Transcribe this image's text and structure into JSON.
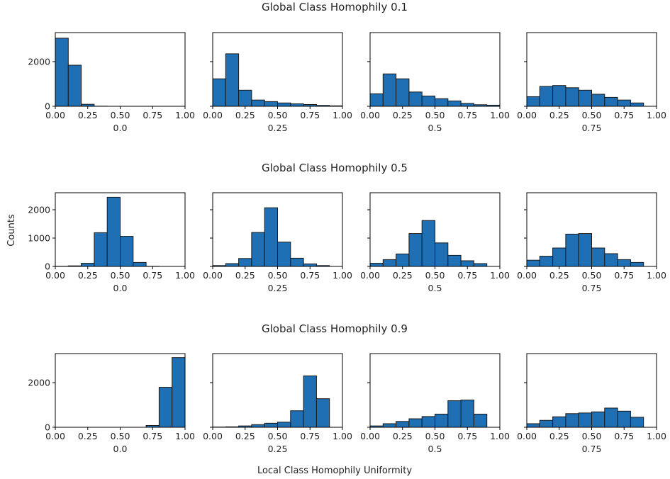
{
  "figure": {
    "ylabel": "Counts",
    "xlabel": "Local Class Homophily Uniformity"
  },
  "style": {
    "bar_color": "#1f6fb4",
    "edge_color": "#1a1a1a"
  },
  "chart_data": [
    {
      "type": "bar",
      "title": "Global Class Homophily 0.1",
      "ylim": [
        0,
        3300
      ],
      "yticks": [
        0,
        2000
      ],
      "xlim": [
        0,
        1
      ],
      "xticks": [
        "0.00",
        "0.25",
        "0.50",
        "0.75",
        "1.00"
      ],
      "bins": [
        0,
        0.1,
        0.2,
        0.3,
        0.4,
        0.5,
        0.6,
        0.7,
        0.8,
        0.9,
        1.0
      ],
      "panels": [
        {
          "xlabel": "0.0",
          "values": [
            3050,
            1840,
            90,
            5,
            0,
            0,
            0,
            0,
            0,
            0
          ]
        },
        {
          "xlabel": "0.25",
          "values": [
            1230,
            2350,
            720,
            280,
            210,
            150,
            110,
            80,
            40,
            20
          ]
        },
        {
          "xlabel": "0.5",
          "values": [
            560,
            1450,
            1230,
            640,
            460,
            340,
            240,
            130,
            70,
            50
          ]
        },
        {
          "xlabel": "0.75",
          "values": [
            430,
            890,
            930,
            830,
            720,
            540,
            400,
            280,
            150,
            0
          ]
        }
      ]
    },
    {
      "type": "bar",
      "title": "Global Class Homophily 0.5",
      "ylim": [
        0,
        2600
      ],
      "yticks": [
        0,
        1000,
        2000
      ],
      "xlim": [
        0,
        1
      ],
      "xticks": [
        "0.00",
        "0.25",
        "0.50",
        "0.75",
        "1.00"
      ],
      "bins": [
        0,
        0.1,
        0.2,
        0.3,
        0.4,
        0.5,
        0.6,
        0.7,
        0.8,
        0.9,
        1.0
      ],
      "panels": [
        {
          "xlabel": "0.0",
          "values": [
            5,
            20,
            110,
            1190,
            2440,
            1060,
            140,
            5,
            0,
            0
          ]
        },
        {
          "xlabel": "0.25",
          "values": [
            30,
            100,
            280,
            1200,
            2070,
            860,
            290,
            90,
            30,
            0
          ]
        },
        {
          "xlabel": "0.5",
          "values": [
            110,
            240,
            440,
            1160,
            1620,
            830,
            390,
            200,
            100,
            0
          ]
        },
        {
          "xlabel": "0.75",
          "values": [
            220,
            360,
            650,
            1140,
            1160,
            650,
            450,
            240,
            140,
            0
          ]
        }
      ]
    },
    {
      "type": "bar",
      "title": "Global Class Homophily 0.9",
      "ylim": [
        0,
        3300
      ],
      "yticks": [
        0,
        2000
      ],
      "xlim": [
        0,
        1
      ],
      "xticks": [
        "0.00",
        "0.25",
        "0.50",
        "0.75",
        "1.00"
      ],
      "bins": [
        0,
        0.1,
        0.2,
        0.3,
        0.4,
        0.5,
        0.6,
        0.7,
        0.8,
        0.9,
        1.0
      ],
      "panels": [
        {
          "xlabel": "0.0",
          "values": [
            0,
            0,
            0,
            0,
            0,
            0,
            0,
            80,
            1790,
            3120
          ]
        },
        {
          "xlabel": "0.25",
          "values": [
            10,
            20,
            60,
            120,
            180,
            230,
            740,
            2300,
            1280,
            0
          ]
        },
        {
          "xlabel": "0.5",
          "values": [
            60,
            160,
            260,
            380,
            480,
            590,
            1190,
            1220,
            590,
            0
          ]
        },
        {
          "xlabel": "0.75",
          "values": [
            160,
            310,
            470,
            610,
            640,
            690,
            860,
            720,
            450,
            0
          ]
        }
      ]
    }
  ]
}
